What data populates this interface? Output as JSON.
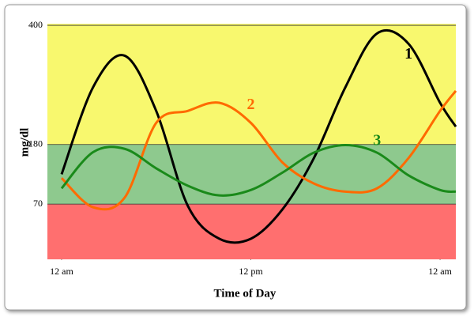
{
  "chart_data": {
    "type": "line",
    "x_label": "Time of Day",
    "y_label": "mg/dl",
    "x": [
      0,
      2,
      4,
      6,
      8,
      10,
      12,
      14,
      16,
      18,
      20,
      22,
      24,
      25
    ],
    "xlim": [
      -0.9,
      25
    ],
    "xticks": [
      {
        "value": 0,
        "label": "12 am"
      },
      {
        "value": 12,
        "label": "12 pm"
      },
      {
        "value": 24,
        "label": "12 am"
      }
    ],
    "ylim": [
      -32,
      403
    ],
    "yticks": [
      70,
      180,
      400
    ],
    "zone_colors": [
      "#ff6f6f",
      "#8ec98e",
      "#f8f86e"
    ],
    "series": [
      {
        "name": "1",
        "color": "#000000",
        "values": [
          125,
          286,
          344,
          242,
          67,
          6,
          6,
          60,
          155,
          286,
          385,
          366,
          257,
          213
        ]
      },
      {
        "name": "2",
        "color": "#ff6a00",
        "values": [
          118,
          64,
          82,
          220,
          242,
          257,
          220,
          147,
          108,
          93,
          99,
          155,
          242,
          279
        ]
      },
      {
        "name": "3",
        "color": "#1a8a1a",
        "values": [
          99,
          166,
          172,
          136,
          104,
          86,
          96,
          128,
          165,
          179,
          165,
          123,
          96,
          93
        ]
      }
    ]
  }
}
